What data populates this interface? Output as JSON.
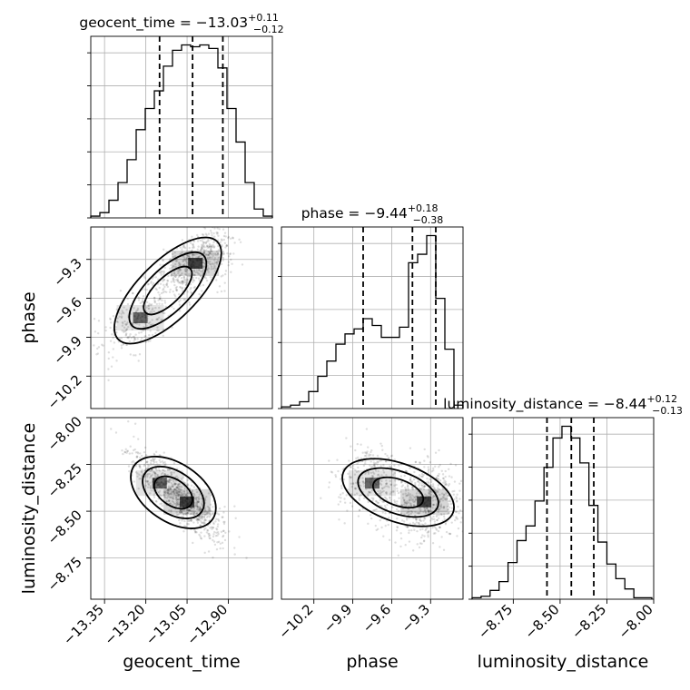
{
  "chart_data": {
    "type": "corner",
    "parameters": [
      "geocent_time",
      "phase",
      "luminosity_distance"
    ],
    "marginals": [
      {
        "name": "geocent_time",
        "title": {
          "text": "geocent_time = −13.03",
          "plus": "+0.11",
          "minus": "−0.12"
        },
        "quantiles": [
          -13.15,
          -13.03,
          -12.92
        ],
        "bin_edges": [
          -13.4,
          -13.367,
          -13.334,
          -13.301,
          -13.268,
          -13.235,
          -13.202,
          -13.169,
          -13.136,
          -13.103,
          -13.07,
          -13.037,
          -13.004,
          -12.971,
          -12.938,
          -12.905,
          -12.872,
          -12.839,
          -12.806,
          -12.773,
          -12.74
        ],
        "counts": [
          1,
          3,
          10,
          20,
          33,
          50,
          62,
          72,
          86,
          95,
          98,
          97,
          98,
          96,
          85,
          62,
          43,
          20,
          5,
          1
        ],
        "xlim": [
          -13.4,
          -12.74
        ]
      },
      {
        "name": "phase",
        "title": {
          "text": "phase = −9.44",
          "plus": "+0.18",
          "minus": "−0.38"
        },
        "quantiles": [
          -9.82,
          -9.44,
          -9.26
        ],
        "bin_edges": [
          -10.45,
          -10.38,
          -10.31,
          -10.24,
          -10.17,
          -10.1,
          -10.03,
          -9.96,
          -9.89,
          -9.82,
          -9.75,
          -9.68,
          -9.61,
          -9.54,
          -9.47,
          -9.4,
          -9.33,
          -9.26,
          -9.19,
          -9.12,
          -9.05
        ],
        "counts": [
          1,
          2,
          4,
          10,
          19,
          28,
          38,
          44,
          47,
          53,
          49,
          42,
          42,
          48,
          86,
          91,
          102,
          65,
          35,
          2
        ],
        "xlim": [
          -10.45,
          -9.05
        ]
      },
      {
        "name": "luminosity_distance",
        "title": {
          "text": "luminosity_distance = −8.44",
          "plus": "+0.12",
          "minus": "−0.13"
        },
        "quantiles": [
          -8.57,
          -8.44,
          -8.32
        ],
        "bin_edges": [
          -8.97,
          -8.922,
          -8.874,
          -8.826,
          -8.778,
          -8.73,
          -8.682,
          -8.634,
          -8.586,
          -8.538,
          -8.49,
          -8.442,
          -8.394,
          -8.346,
          -8.298,
          -8.25,
          -8.202,
          -8.154,
          -8.106,
          -8.058,
          -8.01
        ],
        "counts": [
          1,
          2,
          6,
          12,
          25,
          40,
          50,
          67,
          90,
          110,
          118,
          110,
          93,
          64,
          39,
          24,
          14,
          7,
          1,
          1
        ],
        "xlim": [
          -8.97,
          -8.0
        ]
      }
    ],
    "ticks": {
      "geocent_time": [
        "−13.35",
        "−13.20",
        "−13.05",
        "−12.90"
      ],
      "phase": [
        "−10.2",
        "−9.9",
        "−9.6",
        "−9.3"
      ],
      "luminosity_distance": [
        "−8.75",
        "−8.50",
        "−8.25",
        "−8.00"
      ]
    },
    "tick_values": {
      "geocent_time": [
        -13.35,
        -13.2,
        -13.05,
        -12.9
      ],
      "phase": [
        -10.2,
        -9.9,
        -9.6,
        -9.3
      ],
      "luminosity_distance": [
        -8.75,
        -8.5,
        -8.25,
        -8.0
      ]
    },
    "axis_labels": {
      "x": [
        "geocent_time",
        "phase",
        "luminosity_distance"
      ],
      "y": [
        "phase",
        "luminosity_distance"
      ]
    },
    "limits": {
      "geocent_time": [
        -13.4,
        -12.74
      ],
      "phase": [
        -10.45,
        -9.05
      ],
      "luminosity_distance": [
        -8.97,
        -8.0
      ]
    },
    "joint_density_modes": [
      {
        "pair": [
          "geocent_time",
          "phase"
        ],
        "points": [
          [
            -13.02,
            -9.33
          ],
          [
            -13.22,
            -9.75
          ]
        ]
      },
      {
        "pair": [
          "geocent_time",
          "luminosity_distance"
        ],
        "points": [
          [
            -13.05,
            -8.45
          ],
          [
            -13.15,
            -8.35
          ]
        ]
      },
      {
        "pair": [
          "phase",
          "luminosity_distance"
        ],
        "points": [
          [
            -9.35,
            -8.45
          ],
          [
            -9.75,
            -8.35
          ]
        ]
      }
    ],
    "grid": true,
    "colors": {
      "line": "#000000",
      "points": "#000000",
      "grid": "#b0b0b0"
    }
  }
}
